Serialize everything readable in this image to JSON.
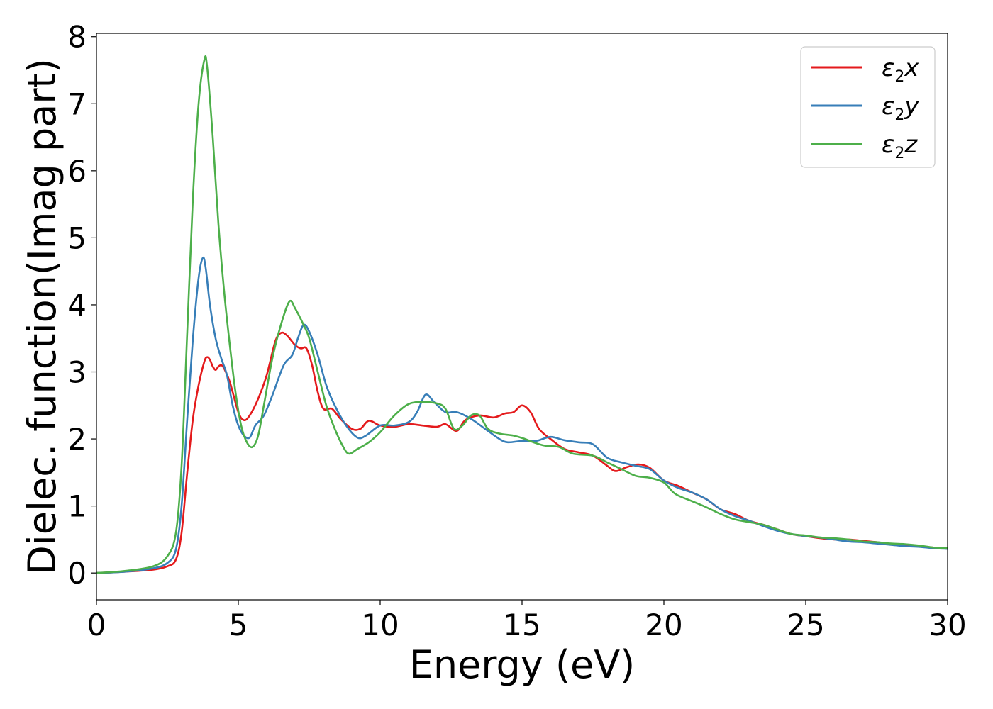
{
  "chart_data": {
    "type": "line",
    "title": "",
    "xlabel": "Energy (eV)",
    "ylabel": "Dielec. function(Imag part)",
    "xlim": [
      0,
      30
    ],
    "ylim": [
      -0.4,
      8.05
    ],
    "xticks": [
      0,
      5,
      10,
      15,
      20,
      25,
      30
    ],
    "yticks": [
      0,
      1,
      2,
      3,
      4,
      5,
      6,
      7,
      8
    ],
    "grid": false,
    "legend_position": "top-right",
    "series": [
      {
        "name": "ε2x",
        "legend_main": "ε",
        "legend_sub": "2",
        "legend_suffix": "x",
        "color": "#e41a1c",
        "points": [
          [
            0,
            0
          ],
          [
            1,
            0.02
          ],
          [
            2,
            0.05
          ],
          [
            2.5,
            0.1
          ],
          [
            2.8,
            0.2
          ],
          [
            3.0,
            0.6
          ],
          [
            3.2,
            1.5
          ],
          [
            3.4,
            2.3
          ],
          [
            3.6,
            2.8
          ],
          [
            3.8,
            3.15
          ],
          [
            3.9,
            3.22
          ],
          [
            4.0,
            3.18
          ],
          [
            4.1,
            3.08
          ],
          [
            4.2,
            3.03
          ],
          [
            4.3,
            3.08
          ],
          [
            4.4,
            3.1
          ],
          [
            4.5,
            3.05
          ],
          [
            4.7,
            2.85
          ],
          [
            5.0,
            2.4
          ],
          [
            5.2,
            2.28
          ],
          [
            5.4,
            2.35
          ],
          [
            5.7,
            2.6
          ],
          [
            6.0,
            2.95
          ],
          [
            6.3,
            3.45
          ],
          [
            6.5,
            3.58
          ],
          [
            6.7,
            3.55
          ],
          [
            7.0,
            3.4
          ],
          [
            7.2,
            3.35
          ],
          [
            7.4,
            3.35
          ],
          [
            7.6,
            3.1
          ],
          [
            7.8,
            2.7
          ],
          [
            8.0,
            2.45
          ],
          [
            8.3,
            2.45
          ],
          [
            8.6,
            2.3
          ],
          [
            9.0,
            2.15
          ],
          [
            9.3,
            2.15
          ],
          [
            9.6,
            2.27
          ],
          [
            10.0,
            2.2
          ],
          [
            10.5,
            2.18
          ],
          [
            11,
            2.22
          ],
          [
            11.5,
            2.2
          ],
          [
            12,
            2.18
          ],
          [
            12.3,
            2.22
          ],
          [
            12.7,
            2.12
          ],
          [
            13.0,
            2.28
          ],
          [
            13.5,
            2.35
          ],
          [
            14.0,
            2.32
          ],
          [
            14.4,
            2.38
          ],
          [
            14.7,
            2.4
          ],
          [
            15.0,
            2.5
          ],
          [
            15.3,
            2.4
          ],
          [
            15.6,
            2.15
          ],
          [
            16,
            2.0
          ],
          [
            16.5,
            1.85
          ],
          [
            17,
            1.8
          ],
          [
            17.5,
            1.75
          ],
          [
            18,
            1.6
          ],
          [
            18.3,
            1.52
          ],
          [
            18.7,
            1.58
          ],
          [
            19.1,
            1.62
          ],
          [
            19.5,
            1.57
          ],
          [
            20,
            1.38
          ],
          [
            20.5,
            1.3
          ],
          [
            21,
            1.2
          ],
          [
            21.5,
            1.1
          ],
          [
            22,
            0.95
          ],
          [
            22.5,
            0.88
          ],
          [
            23,
            0.78
          ],
          [
            23.5,
            0.72
          ],
          [
            24,
            0.65
          ],
          [
            24.5,
            0.58
          ],
          [
            25,
            0.55
          ],
          [
            25.5,
            0.52
          ],
          [
            26,
            0.5
          ],
          [
            26.5,
            0.5
          ],
          [
            27,
            0.48
          ],
          [
            27.5,
            0.46
          ],
          [
            28,
            0.43
          ],
          [
            28.5,
            0.42
          ],
          [
            29,
            0.4
          ],
          [
            29.5,
            0.38
          ],
          [
            30,
            0.36
          ]
        ]
      },
      {
        "name": "ε2y",
        "legend_main": "ε",
        "legend_sub": "2",
        "legend_suffix": "y",
        "color": "#377eb8",
        "points": [
          [
            0,
            0
          ],
          [
            1,
            0.02
          ],
          [
            2,
            0.07
          ],
          [
            2.5,
            0.15
          ],
          [
            2.8,
            0.35
          ],
          [
            3.0,
            1.0
          ],
          [
            3.2,
            2.3
          ],
          [
            3.4,
            3.5
          ],
          [
            3.6,
            4.4
          ],
          [
            3.75,
            4.7
          ],
          [
            3.85,
            4.55
          ],
          [
            4.0,
            4.0
          ],
          [
            4.2,
            3.5
          ],
          [
            4.4,
            3.2
          ],
          [
            4.6,
            2.95
          ],
          [
            4.8,
            2.5
          ],
          [
            5.0,
            2.2
          ],
          [
            5.2,
            2.05
          ],
          [
            5.4,
            2.02
          ],
          [
            5.6,
            2.2
          ],
          [
            5.9,
            2.35
          ],
          [
            6.2,
            2.65
          ],
          [
            6.6,
            3.1
          ],
          [
            6.9,
            3.25
          ],
          [
            7.1,
            3.5
          ],
          [
            7.3,
            3.7
          ],
          [
            7.5,
            3.6
          ],
          [
            7.8,
            3.25
          ],
          [
            8.1,
            2.8
          ],
          [
            8.4,
            2.5
          ],
          [
            8.8,
            2.2
          ],
          [
            9.2,
            2.02
          ],
          [
            9.5,
            2.05
          ],
          [
            10,
            2.2
          ],
          [
            10.5,
            2.2
          ],
          [
            11,
            2.25
          ],
          [
            11.3,
            2.4
          ],
          [
            11.6,
            2.66
          ],
          [
            11.9,
            2.55
          ],
          [
            12.3,
            2.4
          ],
          [
            12.7,
            2.4
          ],
          [
            13.2,
            2.3
          ],
          [
            13.7,
            2.15
          ],
          [
            14.2,
            2.0
          ],
          [
            14.5,
            1.95
          ],
          [
            15,
            1.97
          ],
          [
            15.5,
            1.97
          ],
          [
            16,
            2.03
          ],
          [
            16.5,
            1.98
          ],
          [
            17,
            1.95
          ],
          [
            17.5,
            1.92
          ],
          [
            18,
            1.72
          ],
          [
            18.5,
            1.65
          ],
          [
            19,
            1.6
          ],
          [
            19.5,
            1.55
          ],
          [
            20,
            1.38
          ],
          [
            20.5,
            1.27
          ],
          [
            21,
            1.2
          ],
          [
            21.5,
            1.1
          ],
          [
            22,
            0.95
          ],
          [
            22.5,
            0.85
          ],
          [
            23,
            0.78
          ],
          [
            23.5,
            0.7
          ],
          [
            24,
            0.63
          ],
          [
            24.5,
            0.58
          ],
          [
            25,
            0.55
          ],
          [
            25.5,
            0.53
          ],
          [
            26,
            0.5
          ],
          [
            26.5,
            0.47
          ],
          [
            27,
            0.46
          ],
          [
            27.5,
            0.44
          ],
          [
            28,
            0.42
          ],
          [
            28.5,
            0.4
          ],
          [
            29,
            0.39
          ],
          [
            29.5,
            0.37
          ],
          [
            30,
            0.36
          ]
        ]
      },
      {
        "name": "ε2z",
        "legend_main": "ε",
        "legend_sub": "2",
        "legend_suffix": "z",
        "color": "#4daf4a",
        "points": [
          [
            0,
            0
          ],
          [
            1,
            0.03
          ],
          [
            2,
            0.1
          ],
          [
            2.5,
            0.25
          ],
          [
            2.8,
            0.6
          ],
          [
            3.0,
            1.6
          ],
          [
            3.2,
            3.6
          ],
          [
            3.4,
            5.6
          ],
          [
            3.6,
            7.0
          ],
          [
            3.8,
            7.65
          ],
          [
            3.9,
            7.55
          ],
          [
            4.1,
            6.5
          ],
          [
            4.3,
            5.2
          ],
          [
            4.5,
            4.2
          ],
          [
            4.7,
            3.4
          ],
          [
            4.9,
            2.7
          ],
          [
            5.1,
            2.2
          ],
          [
            5.3,
            1.95
          ],
          [
            5.5,
            1.88
          ],
          [
            5.7,
            2.05
          ],
          [
            5.9,
            2.5
          ],
          [
            6.2,
            3.2
          ],
          [
            6.5,
            3.7
          ],
          [
            6.8,
            4.05
          ],
          [
            7.0,
            3.95
          ],
          [
            7.3,
            3.7
          ],
          [
            7.5,
            3.5
          ],
          [
            7.8,
            3.0
          ],
          [
            8.1,
            2.5
          ],
          [
            8.4,
            2.15
          ],
          [
            8.7,
            1.88
          ],
          [
            8.9,
            1.78
          ],
          [
            9.2,
            1.85
          ],
          [
            9.6,
            1.95
          ],
          [
            10,
            2.1
          ],
          [
            10.5,
            2.35
          ],
          [
            11,
            2.52
          ],
          [
            11.5,
            2.55
          ],
          [
            12,
            2.53
          ],
          [
            12.3,
            2.45
          ],
          [
            12.6,
            2.15
          ],
          [
            12.9,
            2.2
          ],
          [
            13.2,
            2.35
          ],
          [
            13.5,
            2.35
          ],
          [
            13.8,
            2.15
          ],
          [
            14.2,
            2.08
          ],
          [
            14.7,
            2.05
          ],
          [
            15.1,
            2.0
          ],
          [
            15.4,
            1.95
          ],
          [
            15.8,
            1.9
          ],
          [
            16.3,
            1.88
          ],
          [
            16.8,
            1.78
          ],
          [
            17.5,
            1.75
          ],
          [
            18,
            1.65
          ],
          [
            18.5,
            1.55
          ],
          [
            19,
            1.45
          ],
          [
            19.5,
            1.42
          ],
          [
            20,
            1.35
          ],
          [
            20.4,
            1.18
          ],
          [
            21,
            1.07
          ],
          [
            21.5,
            0.98
          ],
          [
            22,
            0.88
          ],
          [
            22.5,
            0.8
          ],
          [
            23,
            0.76
          ],
          [
            23.5,
            0.72
          ],
          [
            24,
            0.65
          ],
          [
            24.5,
            0.58
          ],
          [
            25,
            0.56
          ],
          [
            25.5,
            0.53
          ],
          [
            26,
            0.52
          ],
          [
            26.5,
            0.5
          ],
          [
            27,
            0.47
          ],
          [
            27.5,
            0.46
          ],
          [
            28,
            0.44
          ],
          [
            28.5,
            0.43
          ],
          [
            29,
            0.41
          ],
          [
            29.5,
            0.38
          ],
          [
            30,
            0.37
          ]
        ]
      }
    ]
  }
}
